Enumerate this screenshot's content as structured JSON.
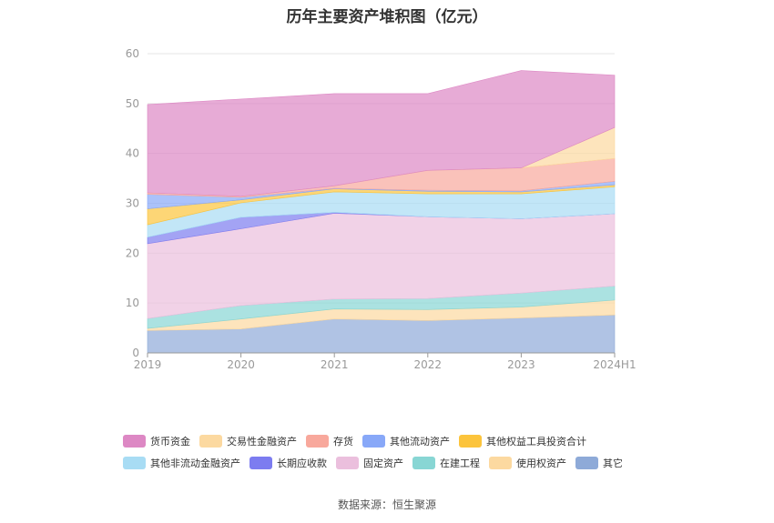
{
  "source": "数据来源：恒生聚源",
  "chart_data": {
    "type": "area",
    "stacked": true,
    "title": "历年主要资产堆积图（亿元）",
    "xlabel": "",
    "ylabel": "",
    "categories": [
      "2019",
      "2020",
      "2021",
      "2022",
      "2023",
      "2024H1"
    ],
    "ylim": [
      0,
      60
    ],
    "yticks": [
      0,
      10,
      20,
      30,
      40,
      50,
      60
    ],
    "grid": true,
    "legend_position": "bottom",
    "series": [
      {
        "name": "其它",
        "color": "#8eaad8",
        "values": [
          4.5,
          4.8,
          6.8,
          6.5,
          7.0,
          7.6
        ]
      },
      {
        "name": "使用权资产",
        "color": "#fcd9a0",
        "values": [
          0.4,
          2.0,
          2.0,
          2.2,
          2.2,
          3.0
        ]
      },
      {
        "name": "在建工程",
        "color": "#88d6d4",
        "values": [
          2.0,
          2.7,
          2.0,
          2.2,
          2.8,
          2.8
        ]
      },
      {
        "name": "固定资产",
        "color": "#ebbfdd",
        "values": [
          15.0,
          15.4,
          17.2,
          16.4,
          14.9,
          14.5
        ]
      },
      {
        "name": "长期应收款",
        "color": "#7c7cf0",
        "values": [
          1.3,
          2.3,
          0.2,
          0.0,
          0.0,
          0.0
        ]
      },
      {
        "name": "其他非流动金融资产",
        "color": "#a8dcf4",
        "values": [
          2.5,
          2.9,
          4.1,
          4.6,
          5.0,
          5.4
        ]
      },
      {
        "name": "其他权益工具投资合计",
        "color": "#fcc43c",
        "values": [
          3.2,
          0.6,
          0.6,
          0.5,
          0.4,
          0.4
        ]
      },
      {
        "name": "其他流动资产",
        "color": "#88a8f8",
        "values": [
          2.9,
          0.5,
          0.1,
          0.2,
          0.2,
          0.7
        ]
      },
      {
        "name": "存货",
        "color": "#f8a89c",
        "values": [
          0.3,
          0.2,
          0.5,
          4.0,
          4.6,
          4.6
        ]
      },
      {
        "name": "交易性金融资产",
        "color": "#fcd9a0",
        "values": [
          0.0,
          0.0,
          0.0,
          0.0,
          0.0,
          6.2
        ]
      },
      {
        "name": "货币资金",
        "color": "#dd88c4",
        "values": [
          17.7,
          19.5,
          18.5,
          15.4,
          19.5,
          10.5
        ]
      }
    ]
  },
  "legend": [
    [
      {
        "label": "货币资金",
        "color": "#dd88c4"
      },
      {
        "label": "交易性金融资产",
        "color": "#fcd9a0"
      },
      {
        "label": "存货",
        "color": "#f8a89c"
      },
      {
        "label": "其他流动资产",
        "color": "#88a8f8"
      },
      {
        "label": "其他权益工具投资合计",
        "color": "#fcc43c"
      }
    ],
    [
      {
        "label": "其他非流动金融资产",
        "color": "#a8dcf4"
      },
      {
        "label": "长期应收款",
        "color": "#7c7cf0"
      },
      {
        "label": "固定资产",
        "color": "#ebbfdd"
      },
      {
        "label": "在建工程",
        "color": "#88d6d4"
      },
      {
        "label": "使用权资产",
        "color": "#fcd9a0"
      },
      {
        "label": "其它",
        "color": "#8eaad8"
      }
    ]
  ]
}
